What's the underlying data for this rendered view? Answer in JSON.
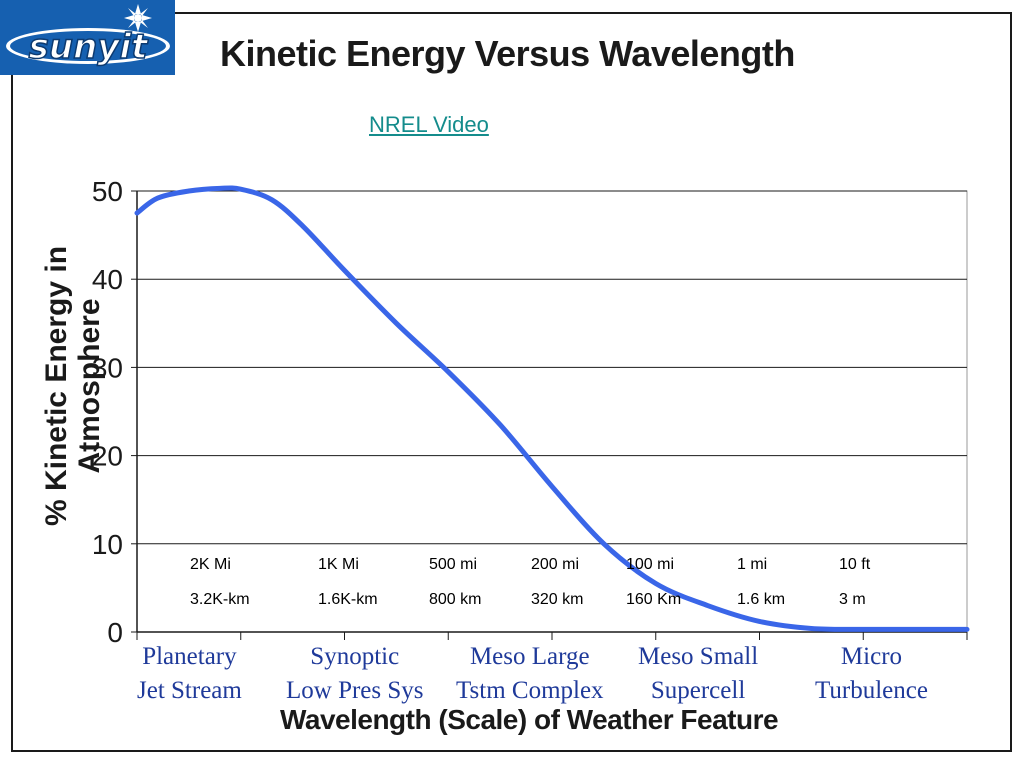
{
  "slide": {
    "logo_text": "sunyit",
    "title": "Kinetic Energy Versus Wavelength",
    "link_text": "NREL Video"
  },
  "scale_labels": {
    "miles": [
      "2K Mi",
      "1K Mi",
      "500 mi",
      "200 mi",
      "100 mi",
      "1 mi",
      "10 ft"
    ],
    "kilometers": [
      "3.2K-km",
      "1.6K-km",
      "800 km",
      "320 km",
      "160 Km",
      "1.6 km",
      "3 m"
    ]
  },
  "categories": [
    {
      "line1": "Planetary",
      "line2": "Jet Stream"
    },
    {
      "line1": "Synoptic",
      "line2": "Low Pres Sys"
    },
    {
      "line1": "Meso Large",
      "line2": "Tstm Complex"
    },
    {
      "line1": "Meso Small",
      "line2": "Supercell"
    },
    {
      "line1": "Micro",
      "line2": "Turbulence"
    }
  ],
  "colors": {
    "line": "#3a66e8",
    "category_text": "#1f3a9a",
    "link": "#148c8c",
    "logo_bg": "#1660b0"
  },
  "chart_data": {
    "type": "line",
    "title": "",
    "xlabel": "Wavelength (Scale) of Weather Feature",
    "ylabel": "% Kinetic Energy in Atmosphere",
    "ylim": [
      0,
      50
    ],
    "yticks": [
      "0",
      "10",
      "20",
      "30",
      "40",
      "50"
    ],
    "grid": true,
    "xlim": [
      0,
      8
    ],
    "x": [
      0,
      0.2,
      0.5,
      0.8,
      1.0,
      1.3,
      1.6,
      2.0,
      2.5,
      3.0,
      3.5,
      4.0,
      4.5,
      5.0,
      5.5,
      6.0,
      6.5,
      7.0,
      7.5,
      8.0
    ],
    "series": [
      {
        "values": [
          47.5,
          49.2,
          50.0,
          50.3,
          50.2,
          49.0,
          46.0,
          41.0,
          35.0,
          29.5,
          23.5,
          16.5,
          10.0,
          5.5,
          3.0,
          1.2,
          0.4,
          0.3,
          0.3,
          0.3
        ]
      }
    ]
  }
}
